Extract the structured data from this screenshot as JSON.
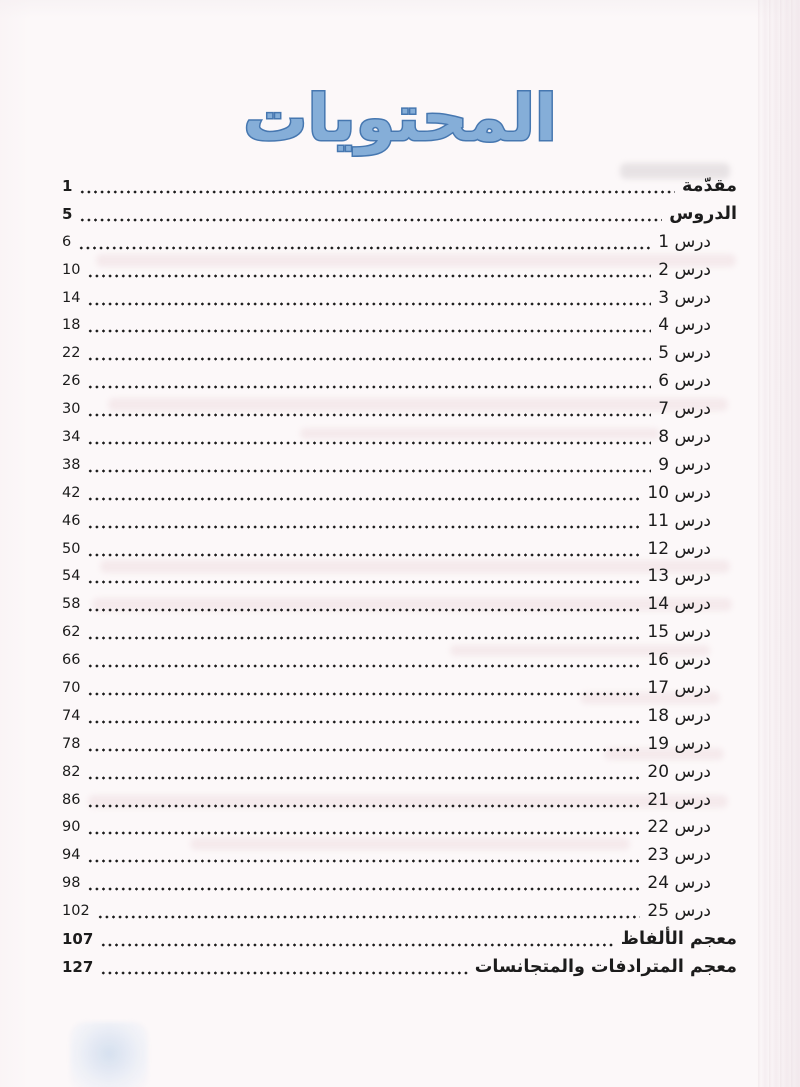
{
  "title": "المحتويات",
  "colors": {
    "title_fill": "#85aed8",
    "title_stroke": "#4677b0",
    "ink": "#1c1c1c",
    "paper": "#fcf8f9"
  },
  "entries": [
    {
      "label": "مقدّمة",
      "page": "1",
      "bold": true,
      "indent": false
    },
    {
      "label": "الدروس",
      "page": "5",
      "bold": true,
      "indent": false
    },
    {
      "label": "درس 1",
      "page": "6",
      "bold": false,
      "indent": true
    },
    {
      "label": "درس 2",
      "page": "10",
      "bold": false,
      "indent": true
    },
    {
      "label": "درس 3",
      "page": "14",
      "bold": false,
      "indent": true
    },
    {
      "label": "درس 4",
      "page": "18",
      "bold": false,
      "indent": true
    },
    {
      "label": "درس 5",
      "page": "22",
      "bold": false,
      "indent": true
    },
    {
      "label": "درس 6",
      "page": "26",
      "bold": false,
      "indent": true
    },
    {
      "label": "درس 7",
      "page": "30",
      "bold": false,
      "indent": true
    },
    {
      "label": "درس 8",
      "page": "34",
      "bold": false,
      "indent": true
    },
    {
      "label": "درس 9",
      "page": "38",
      "bold": false,
      "indent": true
    },
    {
      "label": "درس 10",
      "page": "42",
      "bold": false,
      "indent": true
    },
    {
      "label": "درس 11",
      "page": "46",
      "bold": false,
      "indent": true
    },
    {
      "label": "درس 12",
      "page": "50",
      "bold": false,
      "indent": true
    },
    {
      "label": "درس 13",
      "page": "54",
      "bold": false,
      "indent": true
    },
    {
      "label": "درس 14",
      "page": "58",
      "bold": false,
      "indent": true
    },
    {
      "label": "درس 15",
      "page": "62",
      "bold": false,
      "indent": true
    },
    {
      "label": "درس 16",
      "page": "66",
      "bold": false,
      "indent": true
    },
    {
      "label": "درس 17",
      "page": "70",
      "bold": false,
      "indent": true
    },
    {
      "label": "درس 18",
      "page": "74",
      "bold": false,
      "indent": true
    },
    {
      "label": "درس 19",
      "page": "78",
      "bold": false,
      "indent": true
    },
    {
      "label": "درس 20",
      "page": "82",
      "bold": false,
      "indent": true
    },
    {
      "label": "درس 21",
      "page": "86",
      "bold": false,
      "indent": true
    },
    {
      "label": "درس 22",
      "page": "90",
      "bold": false,
      "indent": true
    },
    {
      "label": "درس 23",
      "page": "94",
      "bold": false,
      "indent": true
    },
    {
      "label": "درس 24",
      "page": "98",
      "bold": false,
      "indent": true
    },
    {
      "label": "درس 25",
      "page": "102",
      "bold": false,
      "indent": true
    },
    {
      "label": "معجم الألفاظ",
      "page": "107",
      "bold": true,
      "indent": false
    },
    {
      "label": "معجم المترادفات والمتجانسات",
      "page": "127",
      "bold": true,
      "indent": false
    }
  ]
}
